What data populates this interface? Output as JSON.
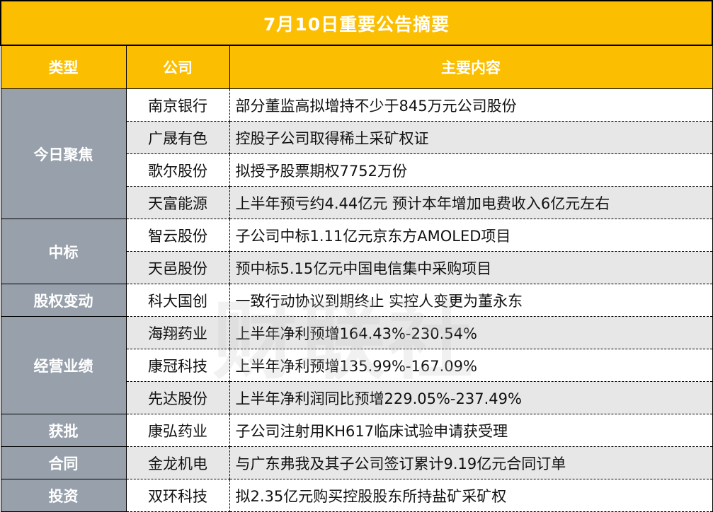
{
  "title": "7月10日重要公告摘要",
  "headers": [
    "类型",
    "公司",
    "主要内容"
  ],
  "colors": {
    "header_bg": "#FBBE00",
    "category_bg": "#97A0AB",
    "alt_row_bg": "#E7E7E8"
  },
  "watermark": "财联社",
  "groups": [
    {
      "category": "今日聚焦",
      "rows": [
        {
          "company": "南京银行",
          "content": "部分董监高拟增持不少于845万元公司股份"
        },
        {
          "company": "广晟有色",
          "content": "控股子公司取得稀土采矿权证"
        },
        {
          "company": "歌尔股份",
          "content": "拟授予股票期权7752万份"
        },
        {
          "company": "天富能源",
          "content": "上半年预亏约4.44亿元 预计本年增加电费收入6亿元左右"
        }
      ]
    },
    {
      "category": "中标",
      "rows": [
        {
          "company": "智云股份",
          "content": "子公司中标1.11亿元京东方AMOLED项目"
        },
        {
          "company": "天邑股份",
          "content": "预中标5.15亿元中国电信集中采购项目"
        }
      ]
    },
    {
      "category": "股权变动",
      "rows": [
        {
          "company": "科大国创",
          "content": "一致行动协议到期终止 实控人变更为董永东"
        }
      ]
    },
    {
      "category": "经营业绩",
      "rows": [
        {
          "company": "海翔药业",
          "content": "上半年净利预增164.43%-230.54%"
        },
        {
          "company": "康冠科技",
          "content": "上半年净利预增135.99%-167.09%"
        },
        {
          "company": "先达股份",
          "content": "上半年净利润同比预增229.05%-237.49%"
        }
      ]
    },
    {
      "category": "获批",
      "rows": [
        {
          "company": "康弘药业",
          "content": "子公司注射用KH617临床试验申请获受理"
        }
      ]
    },
    {
      "category": "合同",
      "rows": [
        {
          "company": "金龙机电",
          "content": "与广东弗我及其子公司签订累计9.19亿元合同订单"
        }
      ]
    },
    {
      "category": "投资",
      "rows": [
        {
          "company": "双环科技",
          "content": "拟2.35亿元购买控股股东所持盐矿采矿权"
        }
      ]
    }
  ]
}
